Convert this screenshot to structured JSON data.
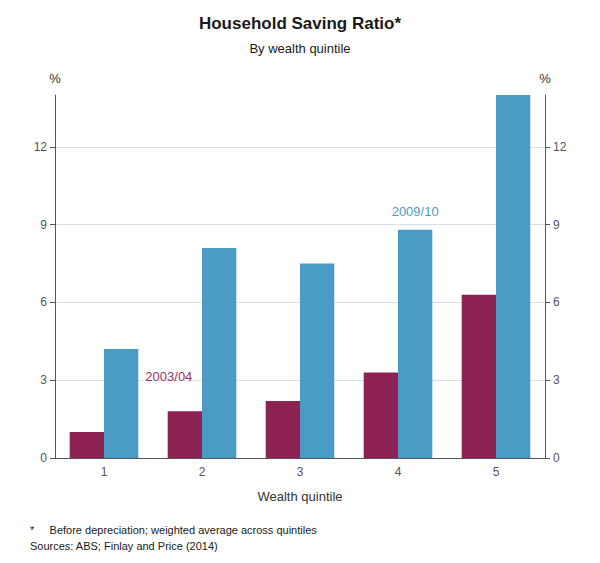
{
  "chart_data": {
    "type": "bar",
    "title": "Household Saving Ratio*",
    "subtitle": "By wealth quintile",
    "xlabel": "Wealth quintile",
    "ylabel": "%",
    "y2label": "%",
    "categories": [
      1,
      2,
      3,
      4,
      5
    ],
    "series": [
      {
        "color": "#8B2252",
        "values": [
          1.0,
          1.8,
          2.2,
          3.3,
          6.3
        ]
      },
      {
        "color": "#4B9CC4",
        "values": [
          4.2,
          8.1,
          7.5,
          8.8,
          14.0
        ]
      }
    ],
    "annotations": [
      {
        "text": "2003/04",
        "color": "#9B3060"
      },
      {
        "text": "2009/10",
        "color": "#4B9CC4"
      }
    ],
    "ylim": [
      0,
      14
    ],
    "yticks": [
      0,
      3,
      6,
      9,
      12
    ],
    "y2lim": [
      0,
      14
    ],
    "y2ticks": [
      0,
      3,
      6,
      9,
      12
    ],
    "grid": true,
    "footnotes": [
      "*     Before depreciation; weighted average across quintiles",
      "Sources: ABS; Finlay and Price (2014)"
    ]
  }
}
